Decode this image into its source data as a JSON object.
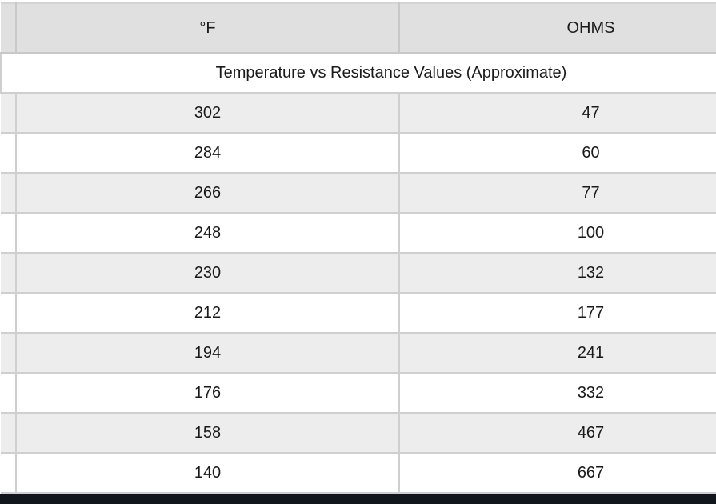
{
  "table": {
    "caption": "Temperature vs Resistance Values (Approximate)",
    "columns": {
      "temperature": {
        "label": "°F"
      },
      "resistance": {
        "label": "OHMS"
      }
    },
    "rows": [
      {
        "f": "302",
        "ohms": "47"
      },
      {
        "f": "284",
        "ohms": "60"
      },
      {
        "f": "266",
        "ohms": "77"
      },
      {
        "f": "248",
        "ohms": "100"
      },
      {
        "f": "230",
        "ohms": "132"
      },
      {
        "f": "212",
        "ohms": "177"
      },
      {
        "f": "194",
        "ohms": "241"
      },
      {
        "f": "176",
        "ohms": "332"
      },
      {
        "f": "158",
        "ohms": "467"
      },
      {
        "f": "140",
        "ohms": "667"
      }
    ]
  },
  "colors": {
    "header_bg": "#e0e0e0",
    "zebra_row_bg": "#ededed",
    "white_row_bg": "#ffffff",
    "border": "#c8c8c8",
    "text": "#1a1a1a",
    "bottom_bar": "#11151c"
  }
}
